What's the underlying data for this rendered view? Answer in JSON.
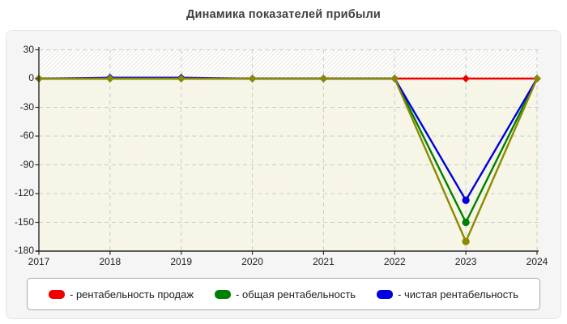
{
  "page": {
    "title": "Динамика показателей прибыли"
  },
  "chart_data": {
    "type": "line",
    "title": "Динамика показателей прибыли",
    "categories": [
      "2017",
      "2018",
      "2019",
      "2020",
      "2021",
      "2022",
      "2023",
      "2024"
    ],
    "y_ticks": [
      30,
      0,
      -30,
      -60,
      -90,
      -120,
      -150,
      -180
    ],
    "ylim": [
      -180,
      30
    ],
    "grid": "dashed-lightgray",
    "plot_background": "white-diagonal-hatch, pale-cream tint below zero",
    "legend_position": "bottom",
    "series": [
      {
        "name": "рентабельность продаж",
        "color": "#ee0000",
        "in_legend": true,
        "values": [
          0,
          0,
          0,
          0,
          0,
          0,
          0,
          0
        ]
      },
      {
        "name": "общая рентабельность",
        "color": "#008000",
        "in_legend": true,
        "values": [
          0,
          0,
          0,
          0,
          0,
          0,
          -150,
          0
        ]
      },
      {
        "name": "чистая рентабельность",
        "color": "#0000dd",
        "in_legend": true,
        "values": [
          0,
          1,
          1,
          0,
          0,
          0,
          -127,
          0
        ]
      },
      {
        "name": "unlabeled-series",
        "color": "#8a8a00",
        "in_legend": false,
        "values": [
          0,
          0,
          0,
          0,
          0,
          0,
          -170,
          0
        ]
      }
    ]
  },
  "legend": {
    "items": [
      {
        "label": "- рентабельность продаж",
        "color": "#ee0000"
      },
      {
        "label": "- общая рентабельность",
        "color": "#008000"
      },
      {
        "label": "- чистая рентабельность",
        "color": "#0000dd"
      }
    ]
  },
  "colors": {
    "panel_bg": "#f5f5f5",
    "axis": "#2a2a2a",
    "grid": "#cccccc",
    "hatch": "#e8e6e0",
    "negative_zone": "#f6f5e5",
    "title_text": "#3f3f3f",
    "label_text": "#1f1f1f"
  }
}
